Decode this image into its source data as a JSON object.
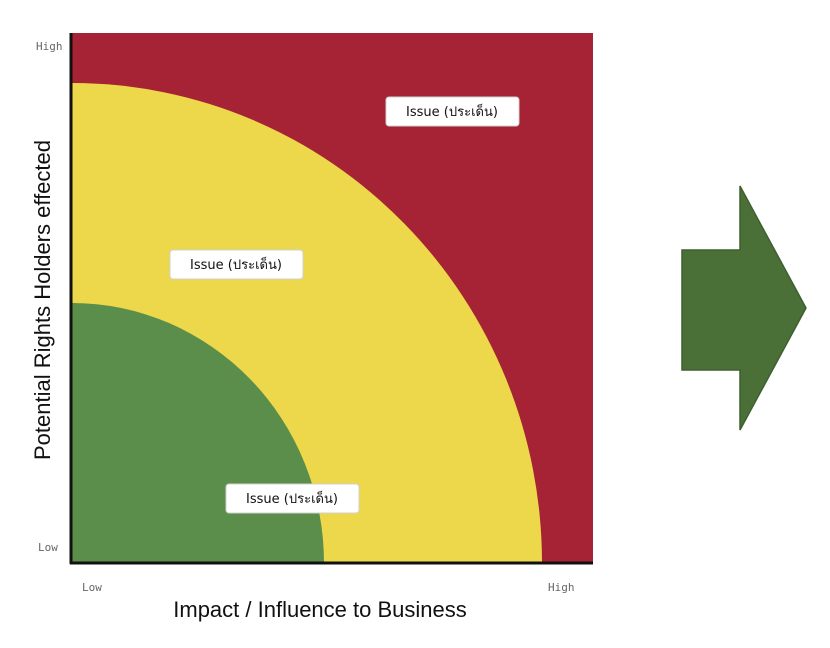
{
  "diagram": {
    "x_axis": {
      "title": "Impact / Influence  to Business",
      "low": "Low",
      "high": "High"
    },
    "y_axis": {
      "title": "Potential Rights  Holders effected",
      "low": "Low",
      "high": "High"
    },
    "zones": [
      {
        "level": "high",
        "color": "#a52334",
        "label": "Issue (ประเด็น)"
      },
      {
        "level": "medium",
        "color": "#ecd84a",
        "label": "Issue (ประเด็น)"
      },
      {
        "level": "low",
        "color": "#5b8e4a",
        "label": "Issue (ประเด็น)"
      }
    ],
    "arrow": {
      "color": "#4a7038",
      "outline": "#3e5f2f"
    },
    "axis_color": "#111111"
  }
}
